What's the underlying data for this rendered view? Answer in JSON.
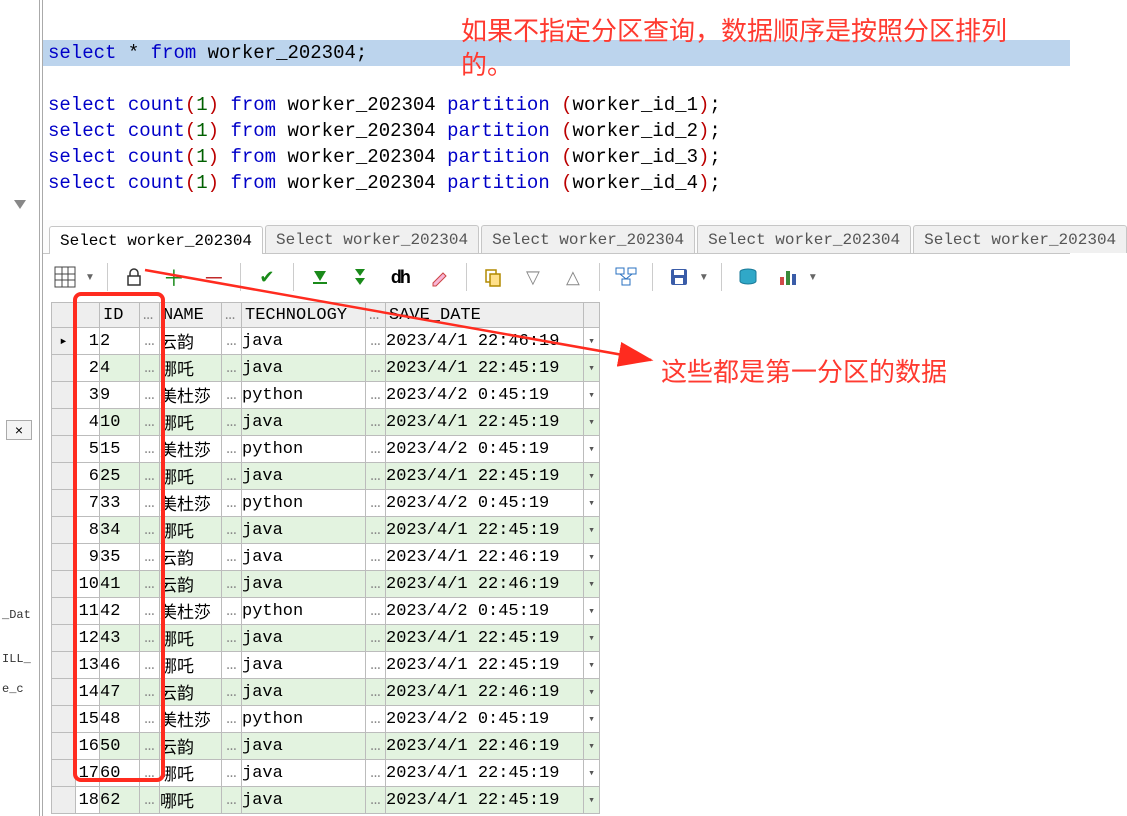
{
  "colors": {
    "highlight_bg": "#bcd4ed",
    "keyword": "#0000c8",
    "partition_kw": "#0000c8",
    "paren": "#b00000",
    "annotation": "#ff3a30",
    "even_row": "#e3f3e0",
    "odd_row": "#ffffff",
    "header_bg": "#eeeeee",
    "grid_border": "#bcbcbc",
    "red_box": "#ff2b1f"
  },
  "sql": {
    "line0": "select * from worker_202304;",
    "count_lines": [
      {
        "suffix": "worker_id_1"
      },
      {
        "suffix": "worker_id_2"
      },
      {
        "suffix": "worker_id_3"
      },
      {
        "suffix": "worker_id_4"
      }
    ],
    "kw_select": "select",
    "kw_from": "from",
    "kw_count": "count",
    "kw_partition": "partition",
    "num_one": "1",
    "table_name": "worker_202304"
  },
  "annotations": {
    "top": "如果不指定分区查询，数据顺序是按照分区排列的。",
    "side": "这些都是第一分区的数据"
  },
  "tabs": [
    "Select worker_202304",
    "Select worker_202304",
    "Select worker_202304",
    "Select worker_202304",
    "Select worker_202304"
  ],
  "grid": {
    "headers": {
      "rownum": "",
      "id": "ID",
      "name": "NAME",
      "technology": "TECHNOLOGY",
      "save_date": "SAVE_DATE"
    },
    "ellipsis": "…",
    "dropdown": "▾",
    "pointer": "▸",
    "rows": [
      {
        "n": 1,
        "id": "2",
        "name": "云韵",
        "tech": "java",
        "date": "2023/4/1 22:46:19"
      },
      {
        "n": 2,
        "id": "4",
        "name": "哪吒",
        "tech": "java",
        "date": "2023/4/1 22:45:19"
      },
      {
        "n": 3,
        "id": "9",
        "name": "美杜莎",
        "tech": "python",
        "date": "2023/4/2 0:45:19"
      },
      {
        "n": 4,
        "id": "10",
        "name": "哪吒",
        "tech": "java",
        "date": "2023/4/1 22:45:19"
      },
      {
        "n": 5,
        "id": "15",
        "name": "美杜莎",
        "tech": "python",
        "date": "2023/4/2 0:45:19"
      },
      {
        "n": 6,
        "id": "25",
        "name": "哪吒",
        "tech": "java",
        "date": "2023/4/1 22:45:19"
      },
      {
        "n": 7,
        "id": "33",
        "name": "美杜莎",
        "tech": "python",
        "date": "2023/4/2 0:45:19"
      },
      {
        "n": 8,
        "id": "34",
        "name": "哪吒",
        "tech": "java",
        "date": "2023/4/1 22:45:19"
      },
      {
        "n": 9,
        "id": "35",
        "name": "云韵",
        "tech": "java",
        "date": "2023/4/1 22:46:19"
      },
      {
        "n": 10,
        "id": "41",
        "name": "云韵",
        "tech": "java",
        "date": "2023/4/1 22:46:19"
      },
      {
        "n": 11,
        "id": "42",
        "name": "美杜莎",
        "tech": "python",
        "date": "2023/4/2 0:45:19"
      },
      {
        "n": 12,
        "id": "43",
        "name": "哪吒",
        "tech": "java",
        "date": "2023/4/1 22:45:19"
      },
      {
        "n": 13,
        "id": "46",
        "name": "哪吒",
        "tech": "java",
        "date": "2023/4/1 22:45:19"
      },
      {
        "n": 14,
        "id": "47",
        "name": "云韵",
        "tech": "java",
        "date": "2023/4/1 22:46:19"
      },
      {
        "n": 15,
        "id": "48",
        "name": "美杜莎",
        "tech": "python",
        "date": "2023/4/2 0:45:19"
      },
      {
        "n": 16,
        "id": "50",
        "name": "云韵",
        "tech": "java",
        "date": "2023/4/1 22:46:19"
      },
      {
        "n": 17,
        "id": "60",
        "name": "哪吒",
        "tech": "java",
        "date": "2023/4/1 22:45:19"
      },
      {
        "n": 18,
        "id": "62",
        "name": "哪吒",
        "tech": "java",
        "date": "2023/4/1 22:45:19"
      }
    ]
  },
  "left_rail": {
    "frag1": "_Dat",
    "frag2": "ILL_",
    "frag3": "e_c"
  }
}
